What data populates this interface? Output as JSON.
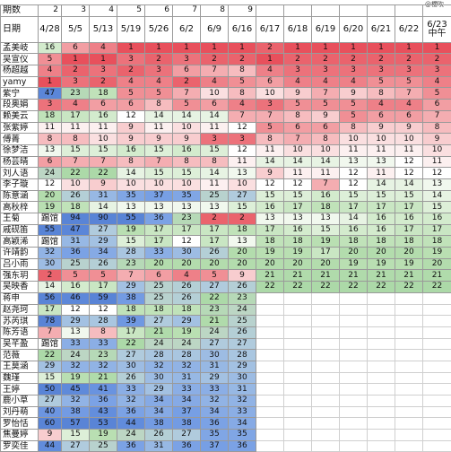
{
  "watermark": "@櫻吹",
  "header": {
    "period_label": "期数",
    "date_label": "日期",
    "periods": [
      "2",
      "3",
      "4",
      "5",
      "6",
      "7",
      "8",
      "9",
      "",
      "",
      "",
      "",
      "",
      "",
      ""
    ],
    "dates": [
      "4/28",
      "5/5",
      "5/13",
      "5/19",
      "5/26",
      "6/2",
      "6/9",
      "6/16",
      "6/17",
      "6/18",
      "6/19",
      "6/20",
      "6/21",
      "6/22",
      "6/23中午"
    ]
  },
  "rows": [
    {
      "name": "孟美岐",
      "note": "",
      "ranks": [
        16,
        6,
        4,
        1,
        1,
        1,
        1,
        1,
        2,
        1,
        1,
        1,
        1,
        1,
        1
      ]
    },
    {
      "name": "吴宣仪",
      "note": "",
      "ranks": [
        5,
        1,
        1,
        3,
        2,
        3,
        2,
        2,
        1,
        2,
        2,
        2,
        2,
        2,
        2
      ]
    },
    {
      "name": "杨超越",
      "note": "",
      "ranks": [
        4,
        2,
        3,
        2,
        3,
        6,
        7,
        8,
        4,
        3,
        3,
        3,
        3,
        3,
        3
      ]
    },
    {
      "name": "yamy",
      "note": "",
      "ranks": [
        1,
        3,
        2,
        4,
        4,
        2,
        4,
        5,
        6,
        4,
        4,
        4,
        5,
        5,
        4
      ]
    },
    {
      "name": "紫宁",
      "note": "",
      "ranks": [
        47,
        23,
        18,
        5,
        5,
        7,
        10,
        8,
        10,
        9,
        7,
        9,
        8,
        7,
        5
      ]
    },
    {
      "name": "段奥娟",
      "note": "",
      "ranks": [
        3,
        4,
        6,
        6,
        8,
        5,
        6,
        4,
        3,
        5,
        5,
        5,
        4,
        4,
        6
      ]
    },
    {
      "name": "赖美云",
      "note": "",
      "ranks": [
        18,
        17,
        16,
        12,
        14,
        14,
        14,
        7,
        7,
        8,
        9,
        5,
        6,
        6,
        7
      ]
    },
    {
      "name": "张紫婷",
      "note": "",
      "ranks": [
        11,
        11,
        11,
        9,
        11,
        10,
        11,
        12,
        5,
        6,
        6,
        8,
        9,
        9,
        8
      ]
    },
    {
      "name": "傅菁",
      "note": "",
      "ranks": [
        8,
        8,
        10,
        9,
        9,
        9,
        3,
        3,
        8,
        7,
        8,
        10,
        10,
        10,
        9
      ]
    },
    {
      "name": "徐梦洁",
      "note": "",
      "ranks": [
        13,
        15,
        15,
        16,
        15,
        16,
        15,
        12,
        11,
        10,
        10,
        11,
        11,
        11,
        10
      ]
    },
    {
      "name": "杨芸晴",
      "note": "",
      "ranks": [
        6,
        7,
        7,
        8,
        7,
        8,
        8,
        11,
        14,
        14,
        14,
        13,
        13,
        12,
        11
      ]
    },
    {
      "name": "刘人语",
      "note": "",
      "ranks": [
        24,
        22,
        22,
        14,
        15,
        15,
        14,
        13,
        9,
        11,
        11,
        12,
        11,
        12,
        12
      ]
    },
    {
      "name": "李子璇",
      "note": "",
      "ranks": [
        12,
        10,
        9,
        10,
        10,
        10,
        11,
        10,
        12,
        12,
        7,
        12,
        14,
        14,
        13
      ]
    },
    {
      "name": "陈意涵",
      "note": "",
      "ranks": [
        20,
        26,
        31,
        35,
        37,
        35,
        25,
        27,
        15,
        15,
        16,
        15,
        15,
        15,
        14
      ]
    },
    {
      "name": "高秋梓",
      "note": "",
      "ranks": [
        19,
        18,
        14,
        13,
        13,
        13,
        13,
        15,
        16,
        17,
        18,
        17,
        17,
        17,
        15
      ]
    },
    {
      "name": "王菊",
      "note": "踢馆",
      "ranks": [
        null,
        94,
        90,
        55,
        36,
        23,
        2,
        2,
        13,
        13,
        13,
        14,
        16,
        16,
        16
      ]
    },
    {
      "name": "戚砚笛",
      "note": "",
      "ranks": [
        55,
        47,
        27,
        19,
        17,
        17,
        17,
        18,
        17,
        16,
        15,
        16,
        16,
        17,
        17
      ]
    },
    {
      "name": "高颖浠",
      "note": "踢馆",
      "ranks": [
        null,
        31,
        29,
        15,
        17,
        12,
        17,
        13,
        18,
        18,
        19,
        18,
        18,
        18,
        18
      ]
    },
    {
      "name": "许靖韵",
      "note": "",
      "ranks": [
        32,
        36,
        34,
        28,
        33,
        30,
        26,
        20,
        19,
        19,
        17,
        20,
        20,
        20,
        19
      ]
    },
    {
      "name": "吕小雨",
      "note": "",
      "ranks": [
        30,
        25,
        26,
        23,
        20,
        20,
        20,
        20,
        20,
        20,
        20,
        19,
        19,
        19,
        20
      ]
    },
    {
      "name": "强东玥",
      "note": "",
      "ranks": [
        2,
        5,
        5,
        7,
        6,
        4,
        5,
        9,
        21,
        21,
        21,
        21,
        21,
        21,
        21
      ]
    },
    {
      "name": "吴映香",
      "note": "",
      "ranks": [
        14,
        16,
        17,
        29,
        25,
        26,
        27,
        26,
        22,
        22,
        22,
        22,
        22,
        22,
        22
      ]
    },
    {
      "name": "蒋申",
      "note": "",
      "ranks": [
        56,
        46,
        59,
        38,
        25,
        26,
        22,
        23
      ]
    },
    {
      "name": "赵尧珂",
      "note": "",
      "ranks": [
        17,
        12,
        12,
        18,
        18,
        18,
        23,
        24
      ]
    },
    {
      "name": "苏芮琪",
      "note": "",
      "ranks": [
        78,
        29,
        28,
        39,
        27,
        29,
        21,
        25
      ]
    },
    {
      "name": "陈芳语",
      "note": "",
      "ranks": [
        7,
        13,
        8,
        17,
        21,
        19,
        24,
        26
      ]
    },
    {
      "name": "吴芊盈",
      "note": "踢馆",
      "ranks": [
        null,
        33,
        33,
        22,
        24,
        24,
        27,
        27
      ]
    },
    {
      "name": "范薇",
      "note": "",
      "ranks": [
        22,
        24,
        23,
        27,
        28,
        28,
        30,
        28
      ]
    },
    {
      "name": "王莫涵",
      "note": "",
      "ranks": [
        29,
        32,
        32,
        30,
        32,
        32,
        31,
        29
      ]
    },
    {
      "name": "魏瑾",
      "note": "",
      "ranks": [
        15,
        19,
        21,
        26,
        30,
        31,
        29,
        30
      ]
    },
    {
      "name": "王婷",
      "note": "",
      "ranks": [
        50,
        45,
        41,
        33,
        29,
        33,
        33,
        31
      ]
    },
    {
      "name": "鹿小草",
      "note": "",
      "ranks": [
        27,
        32,
        36,
        32,
        34,
        34,
        32,
        32
      ]
    },
    {
      "name": "刘丹萌",
      "note": "",
      "ranks": [
        40,
        38,
        43,
        36,
        34,
        37,
        34,
        33
      ]
    },
    {
      "name": "罗怡恬",
      "note": "",
      "ranks": [
        60,
        57,
        53,
        44,
        38,
        38,
        36,
        34
      ]
    },
    {
      "name": "焦曼婷",
      "note": "",
      "ranks": [
        9,
        15,
        19,
        24,
        26,
        27,
        35,
        35
      ]
    },
    {
      "name": "罗奕佳",
      "note": "",
      "ranks": [
        44,
        27,
        25,
        36,
        31,
        36,
        37,
        36
      ]
    }
  ]
}
